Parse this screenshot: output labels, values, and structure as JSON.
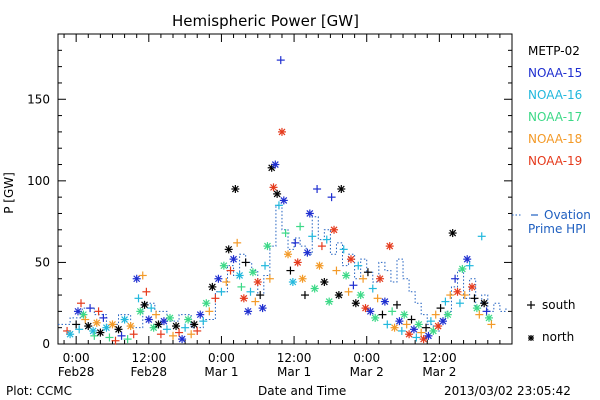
{
  "chart_data": {
    "type": "scatter",
    "title": "Hemispheric Power [GW]",
    "xlabel": "Date and Time",
    "ylabel": "P [GW]",
    "ylim": [
      0,
      190
    ],
    "xlim_hours": [
      -3,
      72
    ],
    "x_ticks": [
      {
        "hour": 0,
        "time": "0:00",
        "date": "Feb28"
      },
      {
        "hour": 12,
        "time": "12:00",
        "date": "Feb28"
      },
      {
        "hour": 24,
        "time": "0:00",
        "date": "Mar 1"
      },
      {
        "hour": 36,
        "time": "12:00",
        "date": "Mar 1"
      },
      {
        "hour": 48,
        "time": "0:00",
        "date": "Mar 2"
      },
      {
        "hour": 60,
        "time": "12:00",
        "date": "Mar 2"
      }
    ],
    "y_ticks": [
      0,
      50,
      100,
      150
    ],
    "grid": false,
    "legend_position": "right",
    "series": [
      {
        "name": "METP-02",
        "color": "#000000"
      },
      {
        "name": "NOAA-15",
        "color": "#1f2fd0"
      },
      {
        "name": "NOAA-16",
        "color": "#22b8dd"
      },
      {
        "name": "NOAA-17",
        "color": "#3cd987"
      },
      {
        "name": "NOAA-18",
        "color": "#f39a28"
      },
      {
        "name": "NOAA-19",
        "color": "#e53a1c"
      }
    ],
    "model_series": {
      "name_line1": "Ovation",
      "name_line2": "Prime HPI",
      "color": "#2060c0",
      "style": "dotted step"
    },
    "marker_key": [
      {
        "symbol": "+",
        "label": "south"
      },
      {
        "symbol": "*",
        "label": "north"
      }
    ],
    "ovation_step": [
      [
        -3,
        12
      ],
      [
        -1,
        16
      ],
      [
        1,
        22
      ],
      [
        3,
        18
      ],
      [
        5,
        12
      ],
      [
        7,
        18
      ],
      [
        9,
        10
      ],
      [
        11,
        25
      ],
      [
        13,
        20
      ],
      [
        15,
        14
      ],
      [
        17,
        18
      ],
      [
        19,
        10
      ],
      [
        21,
        15
      ],
      [
        23,
        32
      ],
      [
        25,
        48
      ],
      [
        26,
        42
      ],
      [
        27,
        55
      ],
      [
        28,
        50
      ],
      [
        29,
        45
      ],
      [
        30,
        30
      ],
      [
        31,
        42
      ],
      [
        32,
        60
      ],
      [
        33,
        85
      ],
      [
        34,
        70
      ],
      [
        35,
        58
      ],
      [
        36,
        65
      ],
      [
        37,
        60
      ],
      [
        38,
        55
      ],
      [
        39,
        78
      ],
      [
        40,
        64
      ],
      [
        41,
        70
      ],
      [
        42,
        55
      ],
      [
        43,
        62
      ],
      [
        44,
        48
      ],
      [
        45,
        55
      ],
      [
        46,
        40
      ],
      [
        47,
        52
      ],
      [
        48,
        44
      ],
      [
        49,
        38
      ],
      [
        50,
        50
      ],
      [
        51,
        45
      ],
      [
        52,
        38
      ],
      [
        53,
        52
      ],
      [
        54,
        40
      ],
      [
        55,
        32
      ],
      [
        56,
        25
      ],
      [
        57,
        18
      ],
      [
        58,
        12
      ],
      [
        59,
        8
      ],
      [
        60,
        15
      ],
      [
        61,
        20
      ],
      [
        62,
        35
      ],
      [
        63,
        45
      ],
      [
        64,
        28
      ],
      [
        65,
        40
      ],
      [
        66,
        22
      ],
      [
        67,
        30
      ],
      [
        68,
        20
      ],
      [
        69,
        25
      ],
      [
        70,
        20
      ],
      [
        71,
        22
      ]
    ],
    "points": [
      [
        -1.5,
        8,
        "s",
        5
      ],
      [
        -1,
        6,
        "n",
        2
      ],
      [
        0,
        12,
        "s",
        0
      ],
      [
        0.3,
        20,
        "n",
        1
      ],
      [
        0.5,
        9,
        "s",
        2
      ],
      [
        0.8,
        25,
        "s",
        5
      ],
      [
        1.2,
        18,
        "n",
        3
      ],
      [
        1.5,
        15,
        "s",
        4
      ],
      [
        2,
        11,
        "n",
        0
      ],
      [
        2.3,
        22,
        "s",
        1
      ],
      [
        2.8,
        8,
        "n",
        2
      ],
      [
        3,
        5,
        "s",
        3
      ],
      [
        3.4,
        13,
        "n",
        4
      ],
      [
        3.7,
        20,
        "s",
        5
      ],
      [
        4,
        7,
        "n",
        0
      ],
      [
        4.5,
        16,
        "s",
        1
      ],
      [
        5,
        10,
        "n",
        2
      ],
      [
        5.5,
        4,
        "s",
        3
      ],
      [
        6,
        12,
        "n",
        4
      ],
      [
        6.5,
        2,
        "s",
        5
      ],
      [
        7,
        9,
        "n",
        0
      ],
      [
        7.5,
        5,
        "s",
        1
      ],
      [
        8,
        15,
        "n",
        2
      ],
      [
        8.5,
        3,
        "s",
        3
      ],
      [
        9,
        11,
        "n",
        4
      ],
      [
        9.5,
        6,
        "s",
        5
      ],
      [
        10,
        40,
        "n",
        1
      ],
      [
        10.3,
        28,
        "s",
        2
      ],
      [
        10.6,
        20,
        "n",
        3
      ],
      [
        11,
        42,
        "s",
        4
      ],
      [
        11.3,
        24,
        "n",
        0
      ],
      [
        11.6,
        32,
        "s",
        5
      ],
      [
        12,
        15,
        "n",
        1
      ],
      [
        12.4,
        22,
        "s",
        2
      ],
      [
        12.8,
        10,
        "n",
        3
      ],
      [
        13.2,
        18,
        "s",
        4
      ],
      [
        13.6,
        12,
        "n",
        0
      ],
      [
        14,
        6,
        "s",
        5
      ],
      [
        14.5,
        14,
        "n",
        1
      ],
      [
        15,
        9,
        "s",
        2
      ],
      [
        15.5,
        16,
        "n",
        3
      ],
      [
        16,
        5,
        "s",
        4
      ],
      [
        16.5,
        11,
        "n",
        0
      ],
      [
        17,
        7,
        "s",
        5
      ],
      [
        17.5,
        3,
        "n",
        1
      ],
      [
        18,
        10,
        "s",
        2
      ],
      [
        18.5,
        15,
        "n",
        3
      ],
      [
        19,
        6,
        "s",
        4
      ],
      [
        19.5,
        12,
        "n",
        0
      ],
      [
        20,
        8,
        "s",
        5
      ],
      [
        20.5,
        18,
        "n",
        1
      ],
      [
        21,
        14,
        "s",
        2
      ],
      [
        21.5,
        25,
        "n",
        3
      ],
      [
        22,
        20,
        "s",
        4
      ],
      [
        22.5,
        35,
        "n",
        0
      ],
      [
        23,
        28,
        "s",
        5
      ],
      [
        23.5,
        40,
        "n",
        1
      ],
      [
        24,
        32,
        "s",
        2
      ],
      [
        24.4,
        48,
        "n",
        3
      ],
      [
        24.8,
        38,
        "s",
        4
      ],
      [
        25.2,
        58,
        "n",
        0
      ],
      [
        25.5,
        45,
        "s",
        5
      ],
      [
        26,
        52,
        "n",
        1
      ],
      [
        26.3,
        95,
        "n",
        0
      ],
      [
        26.6,
        62,
        "s",
        4
      ],
      [
        27,
        42,
        "n",
        2
      ],
      [
        27.3,
        35,
        "s",
        3
      ],
      [
        27.7,
        28,
        "n",
        5
      ],
      [
        28,
        50,
        "s",
        0
      ],
      [
        28.4,
        20,
        "n",
        1
      ],
      [
        28.8,
        32,
        "s",
        2
      ],
      [
        29.2,
        44,
        "n",
        3
      ],
      [
        29.6,
        26,
        "s",
        4
      ],
      [
        30,
        38,
        "n",
        5
      ],
      [
        30.4,
        30,
        "s",
        0
      ],
      [
        30.8,
        22,
        "n",
        1
      ],
      [
        31.2,
        48,
        "s",
        2
      ],
      [
        31.6,
        60,
        "n",
        3
      ],
      [
        32,
        40,
        "s",
        4
      ],
      [
        32.3,
        108,
        "n",
        0
      ],
      [
        32.6,
        96,
        "n",
        5
      ],
      [
        32.9,
        110,
        "n",
        1
      ],
      [
        33.2,
        92,
        "n",
        0
      ],
      [
        33.5,
        85,
        "s",
        2
      ],
      [
        33.8,
        174,
        "s",
        1
      ],
      [
        34,
        130,
        "n",
        5
      ],
      [
        34.3,
        88,
        "n",
        1
      ],
      [
        34.6,
        68,
        "s",
        3
      ],
      [
        35,
        55,
        "n",
        4
      ],
      [
        35.4,
        45,
        "s",
        0
      ],
      [
        35.8,
        38,
        "n",
        2
      ],
      [
        36.2,
        62,
        "s",
        1
      ],
      [
        36.6,
        50,
        "n",
        5
      ],
      [
        37,
        72,
        "s",
        3
      ],
      [
        37.4,
        40,
        "n",
        4
      ],
      [
        37.8,
        30,
        "s",
        0
      ],
      [
        38.2,
        56,
        "n",
        1
      ],
      [
        38.6,
        80,
        "n",
        1
      ],
      [
        39,
        66,
        "s",
        2
      ],
      [
        39.4,
        34,
        "n",
        3
      ],
      [
        39.8,
        95,
        "s",
        1
      ],
      [
        40.2,
        48,
        "n",
        4
      ],
      [
        40.6,
        60,
        "s",
        5
      ],
      [
        41,
        38,
        "n",
        0
      ],
      [
        41.4,
        64,
        "s",
        2
      ],
      [
        41.8,
        26,
        "n",
        3
      ],
      [
        42.2,
        90,
        "s",
        1
      ],
      [
        42.6,
        70,
        "n",
        5
      ],
      [
        43,
        45,
        "s",
        4
      ],
      [
        43.4,
        30,
        "n",
        0
      ],
      [
        43.8,
        95,
        "n",
        0
      ],
      [
        44.2,
        58,
        "s",
        2
      ],
      [
        44.6,
        42,
        "n",
        3
      ],
      [
        45,
        32,
        "s",
        4
      ],
      [
        45.4,
        52,
        "n",
        5
      ],
      [
        45.8,
        36,
        "s",
        1
      ],
      [
        46.2,
        25,
        "n",
        0
      ],
      [
        46.6,
        48,
        "s",
        2
      ],
      [
        47,
        30,
        "n",
        3
      ],
      [
        47.4,
        40,
        "s",
        4
      ],
      [
        47.8,
        22,
        "n",
        5
      ],
      [
        48.2,
        44,
        "s",
        0
      ],
      [
        48.6,
        20,
        "n",
        1
      ],
      [
        49,
        34,
        "s",
        2
      ],
      [
        49.4,
        16,
        "n",
        3
      ],
      [
        49.8,
        28,
        "s",
        4
      ],
      [
        50.2,
        40,
        "n",
        5
      ],
      [
        50.6,
        18,
        "s",
        0
      ],
      [
        51,
        26,
        "n",
        1
      ],
      [
        51.4,
        12,
        "s",
        2
      ],
      [
        51.8,
        60,
        "n",
        5
      ],
      [
        52.2,
        20,
        "s",
        3
      ],
      [
        52.6,
        10,
        "n",
        4
      ],
      [
        53,
        24,
        "s",
        0
      ],
      [
        53.4,
        14,
        "n",
        1
      ],
      [
        53.8,
        8,
        "s",
        2
      ],
      [
        54.2,
        18,
        "n",
        3
      ],
      [
        54.6,
        12,
        "s",
        4
      ],
      [
        55,
        6,
        "n",
        5
      ],
      [
        55.4,
        15,
        "s",
        0
      ],
      [
        55.8,
        9,
        "n",
        1
      ],
      [
        56.2,
        4,
        "s",
        2
      ],
      [
        56.6,
        12,
        "n",
        3
      ],
      [
        57,
        7,
        "s",
        4
      ],
      [
        57.4,
        3,
        "n",
        5
      ],
      [
        57.8,
        10,
        "s",
        0
      ],
      [
        58.2,
        5,
        "n",
        1
      ],
      [
        58.6,
        14,
        "s",
        2
      ],
      [
        59,
        8,
        "n",
        3
      ],
      [
        59.4,
        18,
        "s",
        4
      ],
      [
        59.8,
        11,
        "n",
        5
      ],
      [
        60.2,
        22,
        "s",
        0
      ],
      [
        60.6,
        14,
        "n",
        1
      ],
      [
        61,
        26,
        "s",
        2
      ],
      [
        61.4,
        18,
        "n",
        3
      ],
      [
        61.8,
        30,
        "s",
        4
      ],
      [
        62.2,
        68,
        "n",
        0
      ],
      [
        62.6,
        40,
        "s",
        1
      ],
      [
        63,
        32,
        "n",
        5
      ],
      [
        63.4,
        25,
        "s",
        2
      ],
      [
        63.8,
        46,
        "n",
        3
      ],
      [
        64.2,
        30,
        "s",
        4
      ],
      [
        64.6,
        52,
        "n",
        1
      ],
      [
        65,
        48,
        "s",
        2
      ],
      [
        65.4,
        35,
        "n",
        5
      ],
      [
        65.8,
        28,
        "s",
        0
      ],
      [
        66.2,
        22,
        "n",
        3
      ],
      [
        66.6,
        18,
        "s",
        4
      ],
      [
        67,
        66,
        "s",
        2
      ],
      [
        67.4,
        25,
        "n",
        0
      ],
      [
        67.8,
        20,
        "s",
        1
      ],
      [
        68.2,
        16,
        "n",
        3
      ],
      [
        68.6,
        12,
        "s",
        4
      ]
    ]
  },
  "footer": {
    "left": "Plot: CCMC",
    "right": "2013/03/02 23:05:42"
  }
}
